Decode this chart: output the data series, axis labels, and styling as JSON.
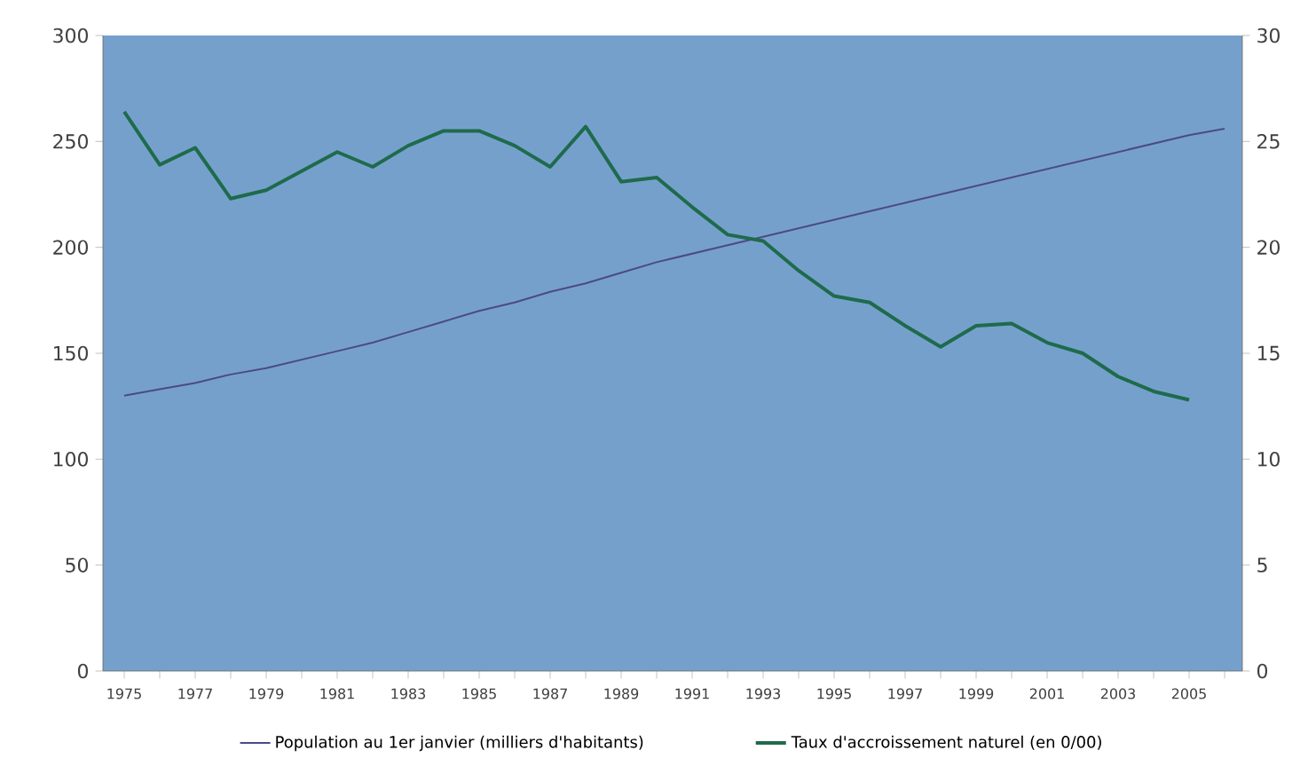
{
  "chart_data": {
    "type": "line",
    "x": [
      1975,
      1976,
      1977,
      1978,
      1979,
      1980,
      1981,
      1982,
      1983,
      1984,
      1985,
      1986,
      1987,
      1988,
      1989,
      1990,
      1991,
      1992,
      1993,
      1994,
      1995,
      1996,
      1997,
      1998,
      1999,
      2000,
      2001,
      2002,
      2003,
      2004,
      2005,
      2006
    ],
    "series": [
      {
        "name": "Population au 1er janvier (milliers d'habitants)",
        "color": "#4b4a86",
        "values": [
          130,
          133,
          136,
          140,
          143,
          147,
          151,
          155,
          160,
          165,
          170,
          174,
          179,
          183,
          188,
          193,
          197,
          201,
          205,
          209,
          213,
          217,
          221,
          225,
          229,
          233,
          237,
          241,
          245,
          249,
          253,
          256
        ]
      },
      {
        "name": "Taux d'accroissement naturel (en 0/00)",
        "color": "#1e6b4c",
        "axis": "y2",
        "x": [
          1975,
          1976,
          1977,
          1978,
          1979,
          1980,
          1981,
          1982,
          1983,
          1984,
          1985,
          1986,
          1987,
          1988,
          1989,
          1990,
          1991,
          1992,
          1993,
          1994,
          1995,
          1996,
          1997,
          1998,
          1999,
          2000,
          2001,
          2002,
          2003,
          2004,
          2005
        ],
        "values": [
          26.4,
          23.9,
          24.7,
          22.3,
          22.7,
          23.6,
          24.5,
          23.8,
          24.8,
          25.5,
          25.5,
          24.8,
          23.8,
          25.7,
          23.1,
          23.3,
          21.9,
          20.6,
          20.3,
          18.9,
          17.7,
          17.4,
          16.3,
          15.3,
          16.3,
          16.4,
          15.5,
          15.0,
          13.9,
          13.2,
          12.8
        ]
      }
    ],
    "xlim": [
      1974.4,
      2006.5
    ],
    "xticks": [
      1975,
      {
        "value": 1976,
        "label": null
      },
      1977,
      {
        "value": 1978,
        "label": null
      },
      1979,
      {
        "value": 1980,
        "label": null
      },
      1981,
      {
        "value": 1982,
        "label": null
      },
      1983,
      {
        "value": 1984,
        "label": null
      },
      1985,
      {
        "value": 1986,
        "label": null
      },
      1987,
      {
        "value": 1988,
        "label": null
      },
      1989,
      {
        "value": 1990,
        "label": null
      },
      1991,
      {
        "value": 1992,
        "label": null
      },
      1993,
      {
        "value": 1994,
        "label": null
      },
      1995,
      {
        "value": 1996,
        "label": null
      },
      1997,
      {
        "value": 1998,
        "label": null
      },
      1999,
      {
        "value": 2000,
        "label": null
      },
      2001,
      {
        "value": 2002,
        "label": null
      },
      2003,
      {
        "value": 2004,
        "label": null
      },
      2005,
      {
        "value": 2006,
        "label": null
      }
    ],
    "ylim": [
      0,
      300
    ],
    "yticks": [
      0,
      50,
      100,
      150,
      200,
      250,
      300
    ],
    "y2lim": [
      0,
      30
    ],
    "y2ticks": [
      0,
      5,
      10,
      15,
      20,
      25,
      30
    ],
    "grid": false,
    "legend": "bottom",
    "marker": "none",
    "line_style": "solid"
  }
}
